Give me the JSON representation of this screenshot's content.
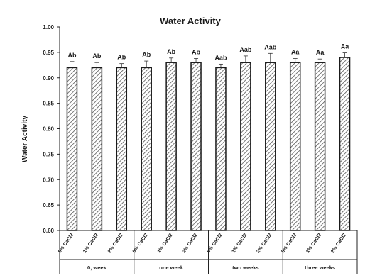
{
  "chart_data": {
    "type": "bar",
    "title": "Water Activity",
    "ylabel": "Water Activity",
    "xlabel": "",
    "ylim": [
      0.6,
      1.0
    ],
    "yticks": [
      "0.60",
      "0.65",
      "0.70",
      "0.75",
      "0.80",
      "0.85",
      "0.90",
      "0.95",
      "1.00"
    ],
    "groups": [
      "0, week",
      "one week",
      "two weeks",
      "three weeks"
    ],
    "categories": [
      "0% CaCl2",
      "1% CaCl2",
      "2% CaCl2",
      "0% CaCl2",
      "1% CaCl2",
      "2% CaCl2",
      "0% CaCl2",
      "1% CaCl2",
      "2% CaCl2",
      "0% CaCl2",
      "1% CaCl2",
      "2% CaCl2"
    ],
    "values": [
      0.92,
      0.92,
      0.92,
      0.92,
      0.93,
      0.93,
      0.92,
      0.93,
      0.93,
      0.93,
      0.93,
      0.94
    ],
    "errors": [
      0.012,
      0.01,
      0.008,
      0.013,
      0.009,
      0.008,
      0.007,
      0.013,
      0.018,
      0.008,
      0.007,
      0.009
    ],
    "significance": [
      "Ab",
      "Ab",
      "Ab",
      "Ab",
      "Ab",
      "Ab",
      "Aab",
      "Aab",
      "Aab",
      "Aa",
      "Aa",
      "Aa"
    ],
    "grid": false,
    "bar_fill": "hatched",
    "colors": {
      "bar_stroke": "#1a1a1a",
      "hatch": "#555555",
      "axis": "#222222"
    }
  }
}
